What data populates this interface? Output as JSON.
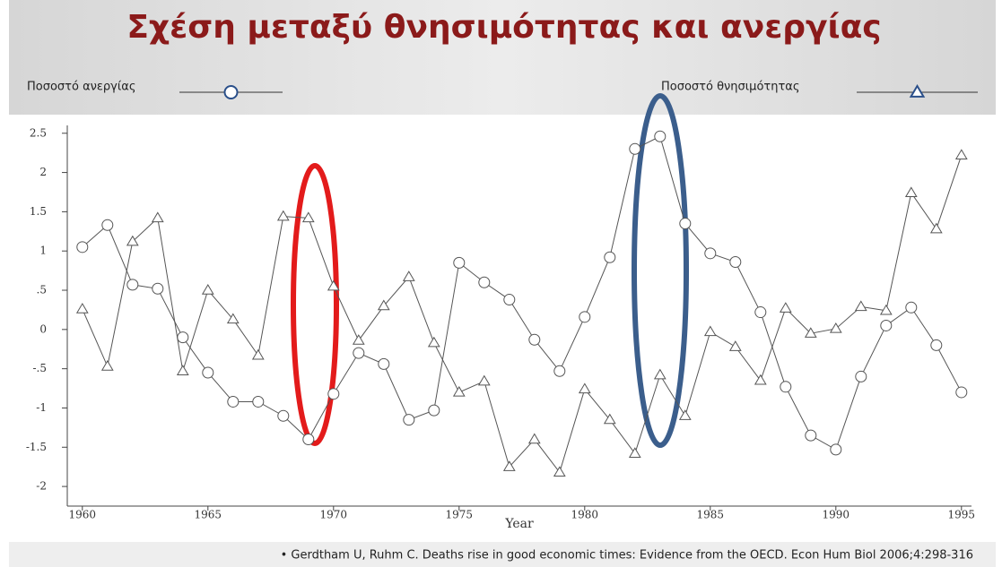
{
  "chart_data": {
    "type": "line",
    "title": "Σχέση μεταξύ θνησιμότητας και ανεργίας",
    "x_label": "Year",
    "source": "• Gerdtham U, Ruhm C. Deaths rise in good economic times: Evidence from the OECD. Econ Hum Biol 2006;4:298-316",
    "x": [
      1960,
      1961,
      1962,
      1963,
      1964,
      1965,
      1966,
      1967,
      1968,
      1969,
      1970,
      1971,
      1972,
      1973,
      1974,
      1975,
      1976,
      1977,
      1978,
      1979,
      1980,
      1981,
      1982,
      1983,
      1984,
      1985,
      1986,
      1987,
      1988,
      1989,
      1990,
      1991,
      1992,
      1993,
      1994,
      1995
    ],
    "series": [
      {
        "name": "Ποσοστό ανεργίας",
        "color": "#555555",
        "marker": "circle",
        "values": [
          1.05,
          1.33,
          0.57,
          0.52,
          -0.1,
          -0.55,
          -0.92,
          -0.92,
          -1.1,
          -1.4,
          -0.82,
          -0.3,
          -0.44,
          -1.15,
          -1.03,
          0.85,
          0.6,
          0.38,
          -0.13,
          -0.53,
          0.16,
          0.92,
          2.3,
          2.46,
          1.35,
          0.97,
          0.86,
          0.22,
          -0.73,
          -1.35,
          -1.53,
          -0.6,
          0.05,
          0.28,
          -0.2,
          -0.8
        ]
      },
      {
        "name": "Ποσοστό θνησιμότητας",
        "color": "#555555",
        "marker": "triangle",
        "values": [
          0.26,
          -0.47,
          1.12,
          1.42,
          -0.53,
          0.5,
          0.13,
          -0.33,
          1.44,
          1.42,
          0.55,
          -0.14,
          0.3,
          0.67,
          -0.17,
          -0.8,
          -0.66,
          -1.75,
          -1.4,
          -1.82,
          -0.76,
          -1.15,
          -1.58,
          -0.58,
          -1.1,
          -0.03,
          -0.22,
          -0.65,
          0.27,
          -0.05,
          0.01,
          0.29,
          0.24,
          1.74,
          1.28,
          2.22
        ]
      }
    ],
    "xlim": [
      1959.4,
      1995.4
    ],
    "xticks": [
      1960,
      1965,
      1970,
      1975,
      1980,
      1985,
      1990,
      1995
    ],
    "ylim": [
      -2.25,
      2.6
    ],
    "yticks": [
      {
        "value": 2.5,
        "label": "2.5"
      },
      2,
      {
        "value": 1.5,
        "label": "1.5"
      },
      1,
      {
        "value": 0.5,
        "label": ".5"
      },
      0,
      {
        "value": -0.5,
        "label": "-.5"
      },
      -1,
      {
        "value": -1.5,
        "label": "-1.5"
      },
      -2
    ]
  }
}
